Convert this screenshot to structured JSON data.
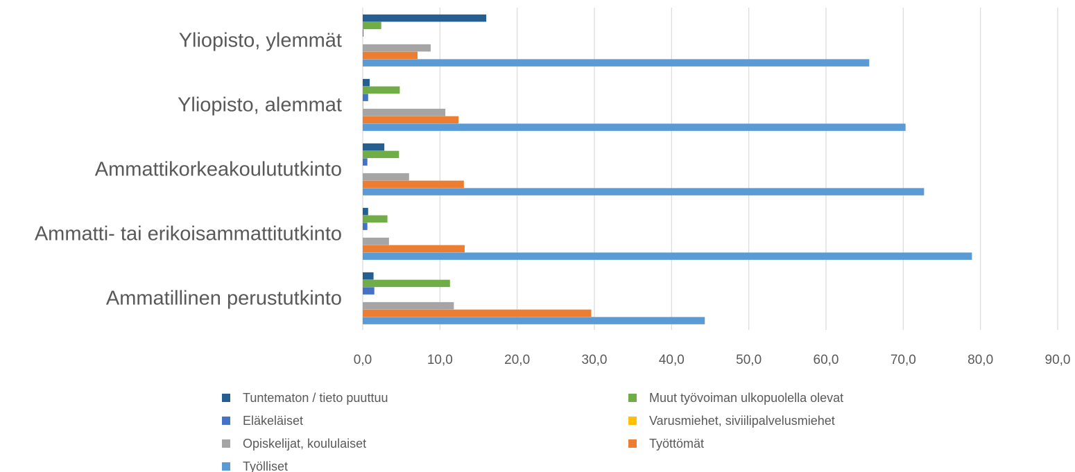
{
  "chart_data": {
    "type": "bar",
    "orientation": "horizontal",
    "title": "",
    "xlabel": "",
    "ylabel": "",
    "xlim": [
      0,
      90
    ],
    "x_ticks": [
      "0,0",
      "10,0",
      "20,0",
      "30,0",
      "40,0",
      "50,0",
      "60,0",
      "70,0",
      "80,0",
      "90,0"
    ],
    "grid": "vertical",
    "legend_position": "bottom",
    "categories": [
      "Ammatillinen perustutkinto",
      "Ammatti- tai erikoisammattitutkinto",
      "Ammattikorkeakoulututkinto",
      "Yliopisto, alemmat",
      "Yliopisto, ylemmät"
    ],
    "series": [
      {
        "name": "Tuntematon / tieto puuttuu",
        "color": "#255e91",
        "values": [
          1.4,
          0.7,
          2.8,
          0.9,
          16.0
        ]
      },
      {
        "name": "Muut työvoiman ulkopuolella olevat",
        "color": "#70ad47",
        "values": [
          11.3,
          3.2,
          4.7,
          4.8,
          2.4
        ]
      },
      {
        "name": "Eläkeläiset",
        "color": "#4472c4",
        "values": [
          1.5,
          0.6,
          0.6,
          0.7,
          0.1
        ]
      },
      {
        "name": "Varusmiehet, siviilipalvelusmiehet",
        "color": "#ffc000",
        "values": [
          0.0,
          0.0,
          0.0,
          0.1,
          0.0
        ]
      },
      {
        "name": "Opiskelijat, koululaiset",
        "color": "#a5a5a5",
        "values": [
          11.8,
          3.4,
          6.0,
          10.7,
          8.8
        ]
      },
      {
        "name": "Työttömät",
        "color": "#ed7d31",
        "values": [
          29.6,
          13.2,
          13.1,
          12.4,
          7.1
        ]
      },
      {
        "name": "Työlliset",
        "color": "#5b9bd5",
        "values": [
          44.3,
          78.9,
          72.7,
          70.3,
          65.6
        ]
      }
    ],
    "legend_order": [
      "Tuntematon / tieto puuttuu",
      "Muut työvoiman ulkopuolella olevat",
      "Eläkeläiset",
      "Varusmiehet, siviilipalvelusmiehet",
      "Opiskelijat, koululaiset",
      "Työttömät",
      "Työlliset"
    ]
  }
}
